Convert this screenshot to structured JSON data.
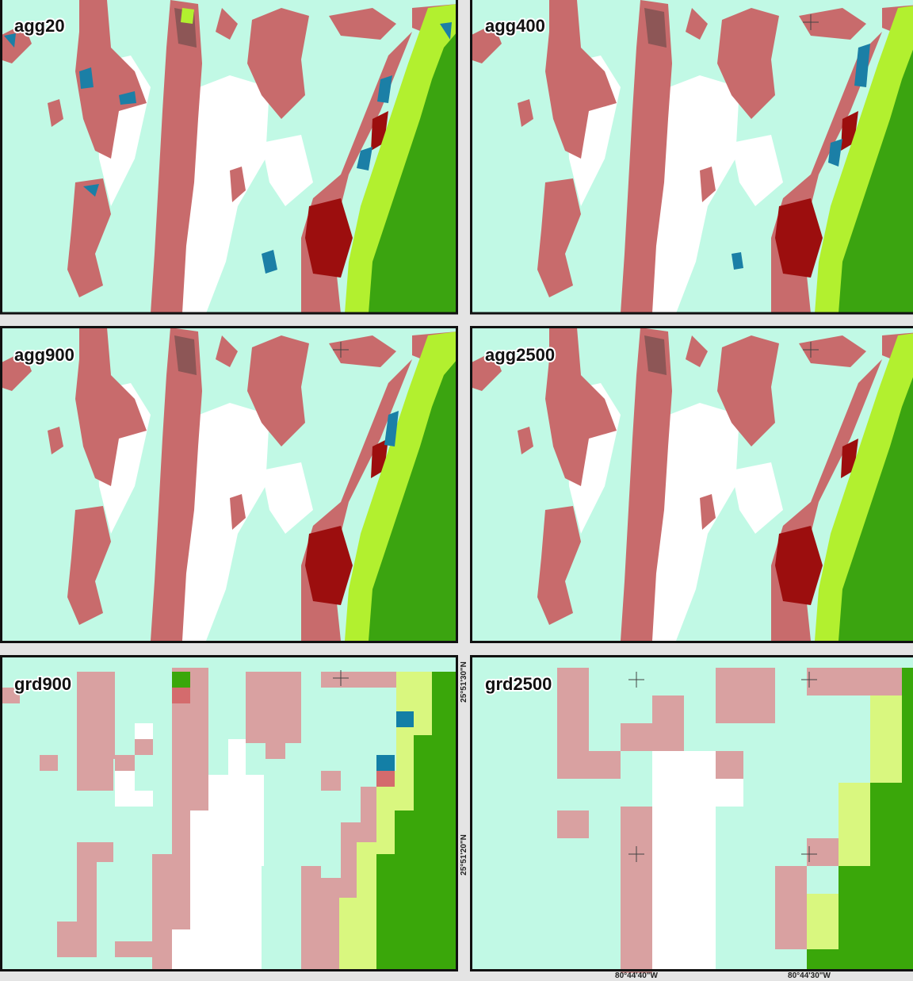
{
  "panels": [
    {
      "label": "agg20"
    },
    {
      "label": "agg400"
    },
    {
      "label": "agg900"
    },
    {
      "label": "agg2500"
    },
    {
      "label": "grd900"
    },
    {
      "label": "grd2500"
    }
  ],
  "coordinates": {
    "latitude": [
      "25°51'30\"N",
      "25°51'20\"N"
    ],
    "longitude": [
      "80°44'40\"W",
      "80°44'30\"W"
    ]
  }
}
